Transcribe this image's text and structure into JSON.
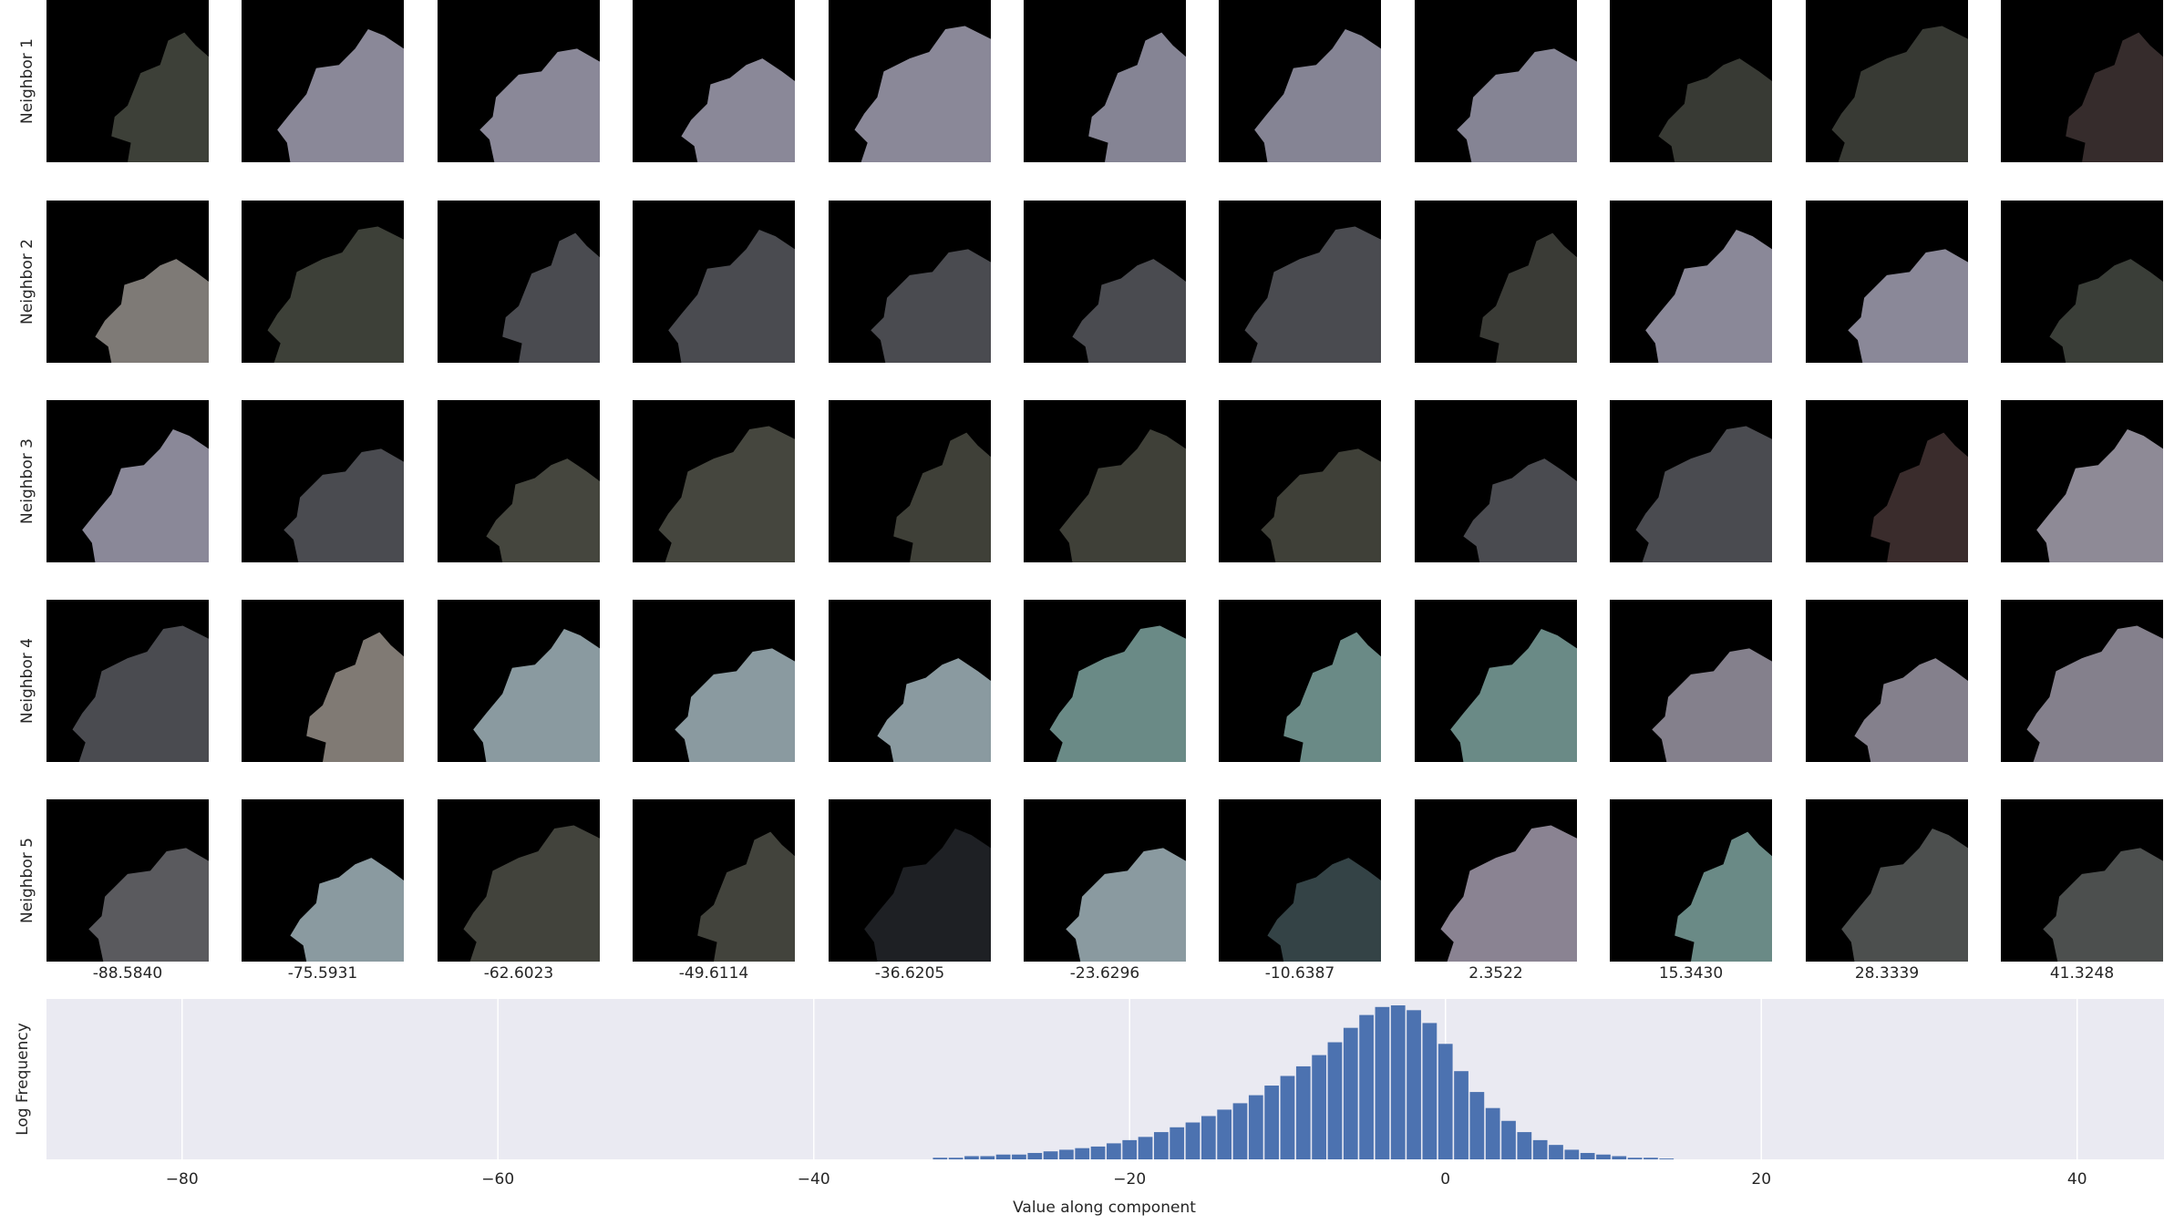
{
  "chart_data": [
    {
      "type": "image-grid",
      "row_labels": [
        "Neighbor 1",
        "Neighbor 2",
        "Neighbor 3",
        "Neighbor 4",
        "Neighbor 5"
      ],
      "column_labels": [
        "-88.5840",
        "-75.5931",
        "-62.6023",
        "-49.6114",
        "-36.6205",
        "-23.6296",
        "-10.6387",
        "2.3522",
        "15.3430",
        "28.3339",
        "41.3248"
      ],
      "tile_colors": [
        [
          "#3d4038",
          "#8a8898",
          "#8a8898",
          "#8a8898",
          "#8a8898",
          "#858494",
          "#858494",
          "#858494",
          "#383a34",
          "#383a34",
          "#362c2c"
        ],
        [
          "#7e7a76",
          "#3d4038",
          "#4a4b50",
          "#4a4b50",
          "#4a4b50",
          "#4a4b50",
          "#4a4b50",
          "#3a3b36",
          "#8a8898",
          "#8a8898",
          "#3a3e38"
        ],
        [
          "#8a8898",
          "#4a4b50",
          "#45463e",
          "#45463e",
          "#3f4038",
          "#3f4038",
          "#3f4038",
          "#4a4b50",
          "#4a4b50",
          "#3a2c2c",
          "#8e8a96"
        ],
        [
          "#4a4b50",
          "#807a74",
          "#8a9aa0",
          "#8a9aa0",
          "#8a9aa0",
          "#6a8a86",
          "#6a8a86",
          "#6a8a86",
          "#84808c",
          "#84808c",
          "#84808c"
        ],
        [
          "#5a5a5e",
          "#8a9aa0",
          "#42433c",
          "#42433c",
          "#1e2024",
          "#8a9aa0",
          "#344346",
          "#8a8392",
          "#6a8a86",
          "#4c4f4e",
          "#4c4f4e"
        ]
      ]
    },
    {
      "type": "bar",
      "title": "",
      "xlabel": "Value along component",
      "ylabel": "Log Frequency",
      "xlim": [
        -88.584,
        45.5
      ],
      "xticks": [
        -80,
        -60,
        -40,
        -20,
        0,
        20,
        40
      ],
      "xtick_labels": [
        "−80",
        "−60",
        "−40",
        "−20",
        "0",
        "20",
        "40"
      ],
      "ylim": [
        0,
        100
      ],
      "grid": true,
      "background": "#eaeaf2",
      "bar_color": "#4c72b0",
      "bin_width": 0.3,
      "x": [
        -32,
        -31,
        -30,
        -29,
        -28,
        -27,
        -26,
        -25,
        -24,
        -23,
        -22,
        -21,
        -20,
        -19,
        -18,
        -17,
        -16,
        -15,
        -14,
        -13,
        -12,
        -11,
        -10,
        -9,
        -8,
        -7,
        -6,
        -5,
        -4,
        -3,
        -2,
        -1,
        0,
        1,
        2,
        3,
        4,
        5,
        6,
        7,
        8,
        9,
        10,
        11,
        12,
        13,
        14
      ],
      "values": [
        1,
        1,
        2,
        2,
        3,
        3,
        4,
        5,
        6,
        7,
        8,
        10,
        12,
        14,
        17,
        20,
        23,
        27,
        31,
        35,
        40,
        46,
        52,
        58,
        65,
        73,
        82,
        90,
        95,
        96,
        93,
        85,
        72,
        55,
        42,
        32,
        24,
        17,
        12,
        9,
        6,
        4,
        3,
        2,
        1,
        1,
        0.5
      ],
      "colors": {
        "grid": "#ffffff",
        "text": "#262626"
      }
    }
  ]
}
